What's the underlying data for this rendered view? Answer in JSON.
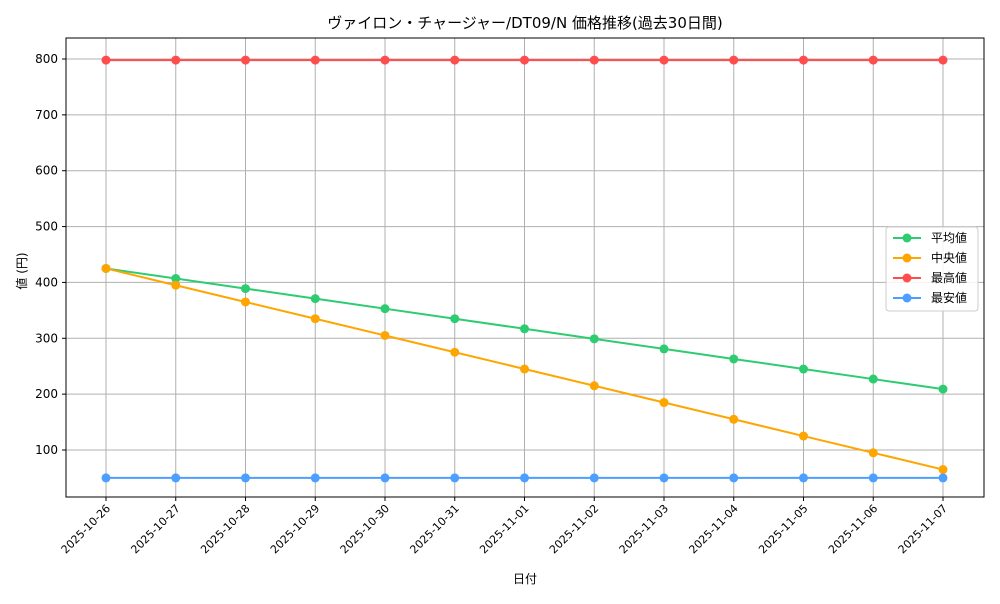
{
  "chart_data": {
    "type": "line",
    "title": "ヴァイロン・チャージャー/DT09/N 価格推移(過去30日間)",
    "xlabel": "日付",
    "ylabel": "値 (円)",
    "categories": [
      "2025-10-26",
      "2025-10-27",
      "2025-10-28",
      "2025-10-29",
      "2025-10-30",
      "2025-10-31",
      "2025-11-01",
      "2025-11-02",
      "2025-11-03",
      "2025-11-04",
      "2025-11-05",
      "2025-11-06",
      "2025-11-07"
    ],
    "yticks": [
      100,
      200,
      300,
      400,
      500,
      600,
      700,
      800
    ],
    "ylim": [
      12,
      836
    ],
    "grid": true,
    "legend_position": "center right",
    "series": [
      {
        "name": "平均値",
        "color": "#2ecc71",
        "values": [
          425,
          407,
          389,
          371,
          353,
          335,
          317,
          299,
          281,
          263,
          245,
          227,
          209
        ]
      },
      {
        "name": "中央値",
        "color": "#ffa500",
        "values": [
          425,
          395,
          365,
          335,
          305,
          275,
          245,
          215,
          185,
          155,
          125,
          95,
          65
        ]
      },
      {
        "name": "最高値",
        "color": "#ff4d4d",
        "values": [
          798,
          798,
          798,
          798,
          798,
          798,
          798,
          798,
          798,
          798,
          798,
          798,
          798
        ]
      },
      {
        "name": "最安値",
        "color": "#4d9fff",
        "values": [
          50,
          50,
          50,
          50,
          50,
          50,
          50,
          50,
          50,
          50,
          50,
          50,
          50
        ]
      }
    ]
  }
}
